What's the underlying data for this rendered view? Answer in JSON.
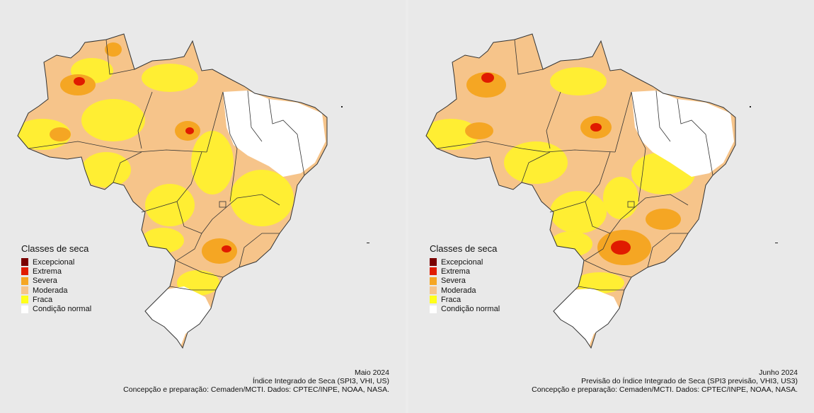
{
  "legend": {
    "title": "Classes de seca",
    "items": [
      {
        "label": "Excepcional",
        "color": "#7a0000"
      },
      {
        "label": "Extrema",
        "color": "#e01b00"
      },
      {
        "label": "Severa",
        "color": "#f5a623"
      },
      {
        "label": "Moderada",
        "color": "#f6c48a"
      },
      {
        "label": "Fraca",
        "color": "#ffff1a"
      },
      {
        "label": "Condição normal",
        "color": "#ffffff"
      }
    ]
  },
  "maps": [
    {
      "date": "Maio 2024",
      "index": "Índice Integrado de Seca (SPI3, VHI, US)",
      "credits": "Concepção e preparação: Cemaden/MCTI. Dados: CPTEC/INPE, NOAA, NASA."
    },
    {
      "date": "Junho 2024",
      "index": "Previsão do Índice Integrado de Seca (SPI3 previsão, VHI3, US3)",
      "credits": "Concepção e preparação: Cemaden/MCTI. Dados: CPTEC/INPE, NOAA, NASA."
    }
  ]
}
